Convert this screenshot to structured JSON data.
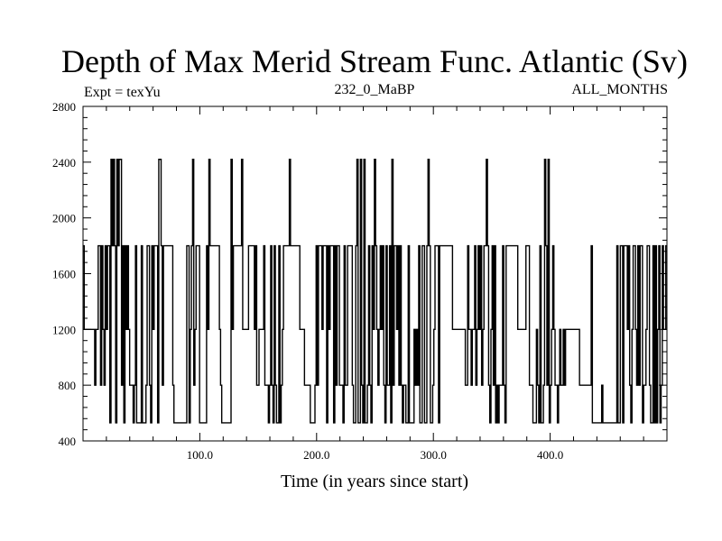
{
  "chart_data": {
    "type": "line",
    "title": "Depth of Max Merid Stream Func. Atlantic (Sv)",
    "subtitle_left": "Expt = texYu",
    "subtitle_center": "232_0_MaBP",
    "subtitle_right": "ALL_MONTHS",
    "xlabel": "Time (in years since start)",
    "ylabel": "",
    "xlim": [
      0,
      500
    ],
    "ylim": [
      400,
      2800
    ],
    "x_ticks": [
      100,
      200,
      300,
      400
    ],
    "x_tick_labels": [
      "100.0",
      "200.0",
      "300.0",
      "400.0"
    ],
    "y_ticks": [
      400,
      800,
      1200,
      1600,
      2000,
      2400,
      2800
    ],
    "y_tick_labels": [
      "400",
      "800",
      "1200",
      "1600",
      "2000",
      "2400",
      "2800"
    ],
    "grid": false,
    "line_color": "#000000",
    "step": true,
    "series": [
      {
        "values": [
          1800,
          1200,
          1200,
          1200,
          1200,
          1200,
          1200,
          1200,
          1200,
          1200,
          800,
          1200,
          1200,
          1800,
          1800,
          800,
          1800,
          1200,
          800,
          1800,
          1200,
          1800,
          1800,
          530,
          2420,
          1800,
          2420,
          1800,
          530,
          2420,
          1800,
          2420,
          2420,
          800,
          1800,
          530,
          1800,
          1200,
          1800,
          1200,
          800,
          800,
          800,
          530,
          800,
          1800,
          530,
          530,
          530,
          530,
          1800,
          530,
          530,
          530,
          800,
          1800,
          1800,
          800,
          530,
          1800,
          1200,
          1800,
          1800,
          1800,
          530,
          2420,
          2420,
          1800,
          800,
          1800,
          1800,
          1800,
          1800,
          1800,
          1800,
          1800,
          1800,
          800,
          530,
          530,
          530,
          530,
          530,
          530,
          530,
          530,
          530,
          530,
          530,
          1800,
          1800,
          530,
          1200,
          1800,
          2420,
          800,
          1200,
          1800,
          1800,
          1800,
          530,
          530,
          530,
          530,
          530,
          530,
          1800,
          1200,
          2420,
          1800,
          1800,
          1800,
          1800,
          1800,
          1800,
          1800,
          1800,
          1200,
          800,
          530,
          530,
          530,
          530,
          530,
          530,
          530,
          530,
          2420,
          1200,
          1800,
          1800,
          1800,
          1800,
          1800,
          1800,
          1800,
          2420,
          1200,
          1200,
          1200,
          1200,
          1200,
          1800,
          1800,
          1800,
          1800,
          1800,
          1200,
          1800,
          800,
          800,
          1200,
          1200,
          1200,
          1200,
          1800,
          800,
          800,
          800,
          530,
          800,
          1800,
          800,
          530,
          1800,
          800,
          530,
          530,
          1800,
          530,
          800,
          1200,
          1800,
          1800,
          1800,
          1800,
          1800,
          2420,
          1800,
          1800,
          1800,
          1800,
          1800,
          1800,
          1800,
          1800,
          1200,
          1200,
          1200,
          1200,
          800,
          800,
          800,
          800,
          800,
          530,
          530,
          530,
          530,
          800,
          1800,
          800,
          1800,
          1800,
          1800,
          1200,
          1800,
          1800,
          1800,
          530,
          1800,
          1200,
          1800,
          1800,
          1800,
          530,
          1800,
          800,
          1800,
          1800,
          800,
          800,
          800,
          530,
          1800,
          800,
          800,
          1800,
          1800,
          1800,
          1800,
          800,
          530,
          530,
          1800,
          2420,
          530,
          530,
          2420,
          800,
          530,
          2420,
          530,
          530,
          800,
          1800,
          800,
          530,
          1800,
          1200,
          2420,
          1800,
          1200,
          800,
          1200,
          1800,
          1200,
          1800,
          800,
          530,
          1800,
          800,
          800,
          1800,
          530,
          2420,
          800,
          1800,
          1800,
          1200,
          1800,
          800,
          1800,
          800,
          530,
          800,
          800,
          530,
          530,
          1800,
          530,
          530,
          530,
          530,
          1200,
          800,
          1200,
          800,
          1800,
          530,
          530,
          1800,
          1800,
          530,
          530,
          1800,
          2420,
          1800,
          530,
          530,
          800,
          1200,
          1800,
          1800,
          1800,
          530,
          1800,
          1800,
          1800,
          1800,
          1800,
          1800,
          1800,
          1800,
          1800,
          1800,
          1800,
          1200,
          1200,
          1200,
          1200,
          1200,
          1200,
          1200,
          1200,
          1200,
          1200,
          1200,
          800,
          800,
          1800,
          1200,
          1200,
          800,
          1200,
          1200,
          1800,
          800,
          1200,
          1800,
          1200,
          1800,
          800,
          1200,
          1800,
          1800,
          2420,
          1800,
          800,
          530,
          1200,
          1800,
          800,
          1800,
          530,
          800,
          530,
          800,
          800,
          800,
          1800,
          800,
          530,
          1800,
          1800,
          1800,
          1800,
          1800,
          1800,
          1800,
          1800,
          1800,
          1800,
          1200,
          1200,
          1200,
          1200,
          1200,
          1200,
          1200,
          1800,
          1800,
          1800,
          800,
          800,
          800,
          530,
          530,
          530,
          1200,
          800,
          530,
          1800,
          530,
          530,
          800,
          2420,
          1800,
          800,
          2420,
          530,
          800,
          1200,
          1800,
          1200,
          800,
          800,
          530,
          800,
          1200,
          800,
          800,
          1200,
          800,
          1200,
          1200,
          1200,
          1200,
          1200,
          1200,
          1200,
          1200,
          1200,
          1200,
          1200,
          1200,
          800,
          800,
          800,
          800,
          800,
          800,
          800,
          800,
          800,
          800,
          1800,
          530,
          530,
          530,
          530,
          530,
          530,
          530,
          530,
          800,
          530,
          530,
          530,
          530,
          530,
          530,
          530,
          530,
          530,
          530,
          530,
          530,
          1800,
          530,
          530,
          1800,
          1800,
          530,
          1800,
          1800,
          1800,
          1200,
          1800,
          800,
          530,
          1200,
          1800,
          1800,
          1200,
          800,
          1800,
          800,
          1800,
          1800,
          530,
          800,
          800,
          1200,
          1800,
          1800,
          800,
          530,
          530,
          1800,
          530,
          1800,
          530,
          1200,
          1800,
          530,
          800,
          1800,
          1200,
          1200,
          1800
        ]
      }
    ]
  }
}
